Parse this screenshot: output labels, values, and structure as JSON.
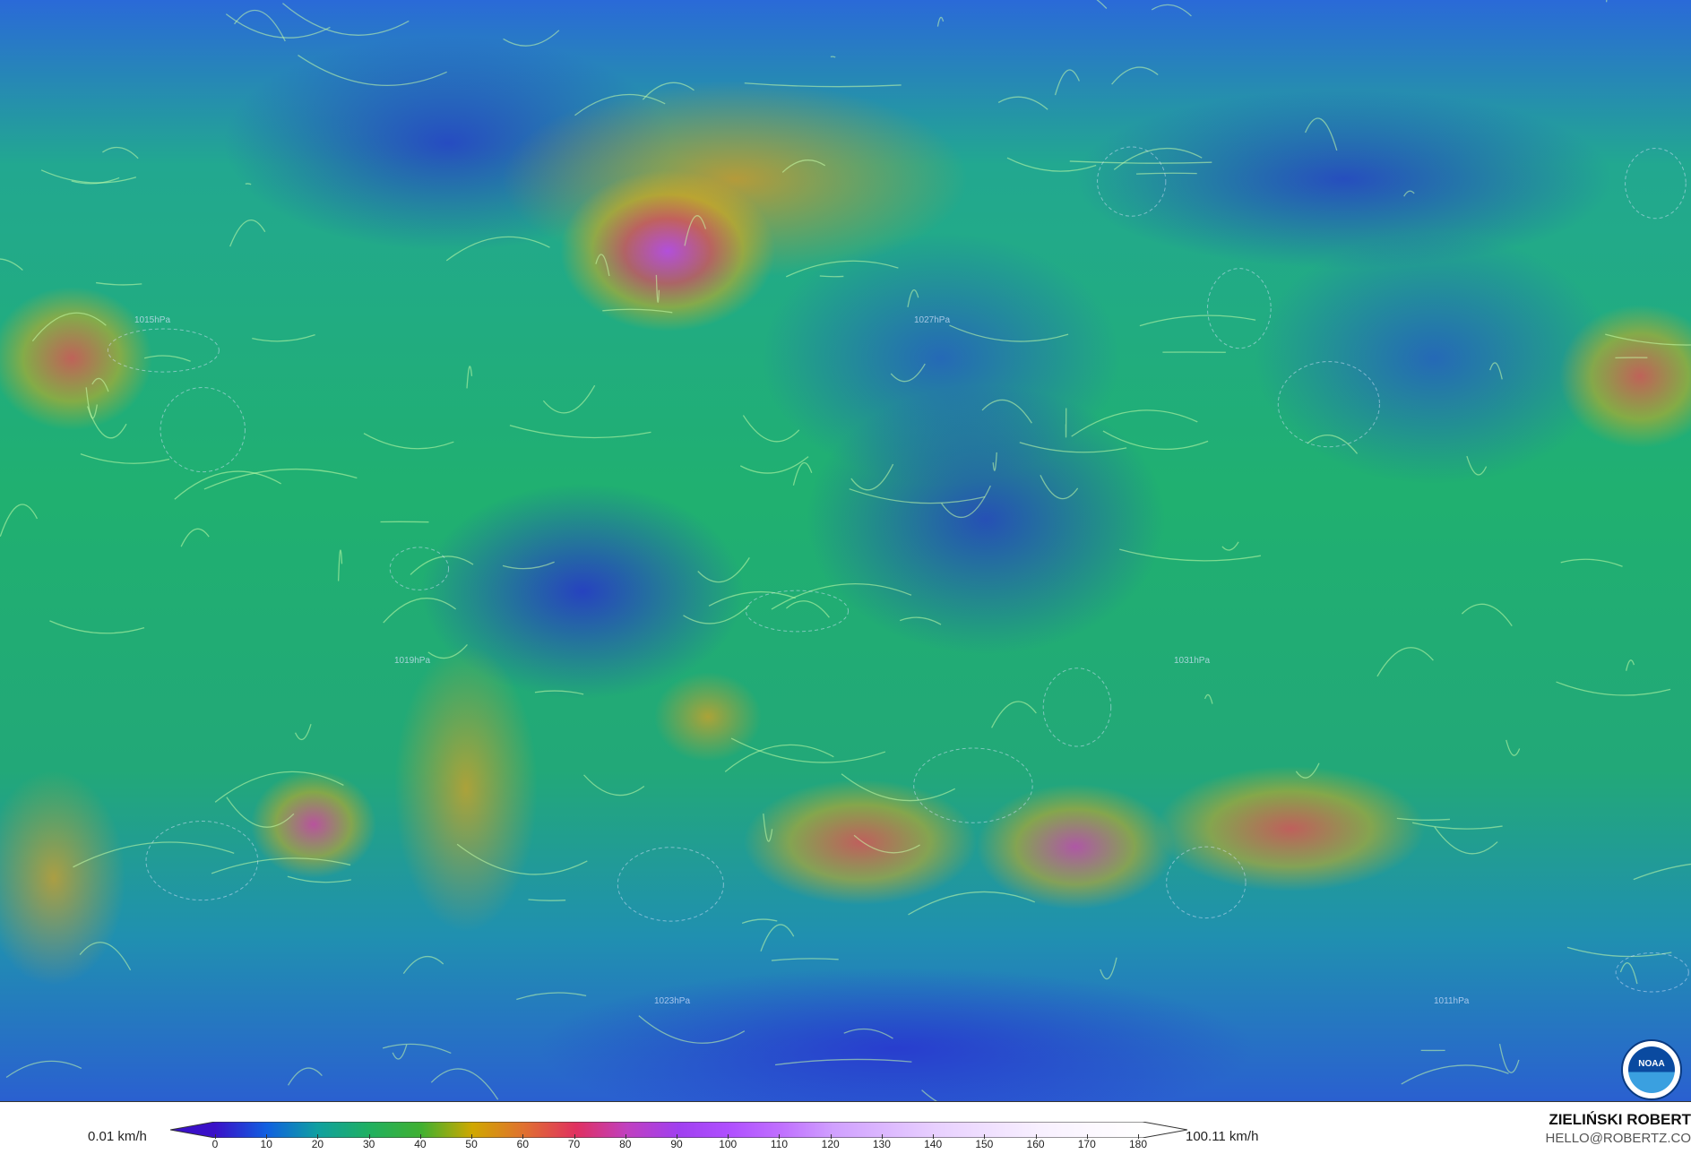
{
  "map": {
    "variable_min": "0.01 km/h",
    "variable_max": "100.11 km/h",
    "logo": "NOAA",
    "isobar_labels": [
      "1015hPa",
      "1019hPa",
      "1023hPa",
      "1027hPa",
      "1031hPa",
      "1011hPa"
    ]
  },
  "colorbar": {
    "ticks": [
      "0",
      "10",
      "20",
      "30",
      "40",
      "50",
      "60",
      "70",
      "80",
      "90",
      "100",
      "110",
      "120",
      "130",
      "140",
      "150",
      "160",
      "170",
      "180"
    ],
    "colors": [
      "#3a10c8",
      "#1060e0",
      "#10a0a0",
      "#20b060",
      "#40b030",
      "#d0a800",
      "#e07030",
      "#e03060",
      "#c040c0",
      "#a040f0",
      "#b050ff",
      "#c070ff",
      "#d0a0ff",
      "#dcb8ff",
      "#e8d0ff",
      "#f0e0ff",
      "#f8f0ff",
      "#fcf8ff",
      "#ffffff"
    ]
  },
  "credits": {
    "author": "ZIELIŃSKI ROBERT",
    "email": "HELLO@ROBERTZ.CO"
  }
}
